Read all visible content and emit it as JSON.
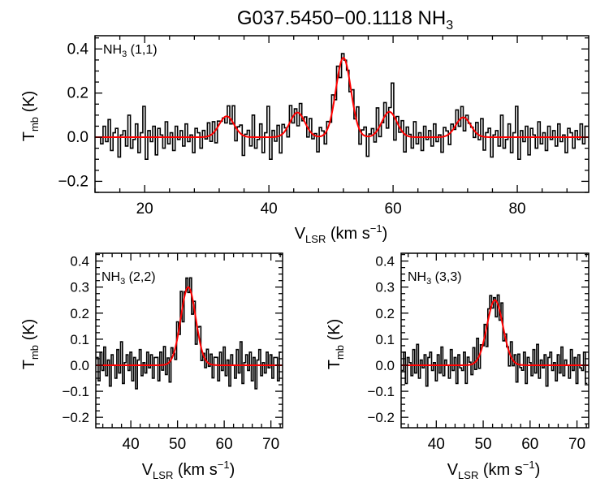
{
  "figure": {
    "title_main": "G037.5450−00.1118 NH",
    "title_sub": "3"
  },
  "chart_data": [
    {
      "type": "line",
      "panel": "top",
      "label": {
        "main": "NH",
        "sub": "3",
        "rest": " (1,1)"
      },
      "xlabel": {
        "main": "V",
        "sub": "LSR",
        "rest": " (km s",
        "sup": "−1",
        "close": ")"
      },
      "ylabel": {
        "main": "T",
        "sub": "mb",
        "rest": " (K)"
      },
      "xlim": [
        12,
        91.5
      ],
      "ylim": [
        -0.25,
        0.46
      ],
      "xticks": [
        20,
        40,
        60,
        80
      ],
      "yticks": [
        -0.2,
        0.0,
        0.2,
        0.4
      ],
      "ytick_labels": [
        "−0.2",
        "0.0",
        "0.2",
        "0.4"
      ],
      "fit_components": [
        {
          "center": 33.2,
          "amplitude": 0.095,
          "sigma": 1.2
        },
        {
          "center": 44.6,
          "amplitude": 0.112,
          "sigma": 1.2
        },
        {
          "center": 52.0,
          "amplitude": 0.36,
          "sigma": 1.2
        },
        {
          "center": 59.4,
          "amplitude": 0.115,
          "sigma": 1.2
        },
        {
          "center": 71.3,
          "amplitude": 0.09,
          "sigma": 1.2
        }
      ],
      "spectrum": {
        "x_start": 12.5,
        "dx": 0.4,
        "noise": [
          0.0,
          -0.03,
          0.05,
          -0.02,
          0.08,
          -0.06,
          0.02,
          0.04,
          -0.09,
          0.01,
          0.03,
          -0.04,
          0.1,
          -0.05,
          -0.01,
          0.06,
          -0.07,
          0.02,
          0.14,
          -0.1,
          0.03,
          -0.02,
          0.05,
          -0.08,
          0.04,
          0.01,
          -0.05,
          0.07,
          -0.03,
          0.02,
          -0.06,
          0.05,
          -0.01,
          0.03,
          -0.04,
          0.06,
          -0.02,
          0.01,
          -0.07,
          0.04,
          0.02,
          -0.05,
          0.03,
          -0.01,
          0.06,
          -0.03,
          0.05,
          -0.06,
          0.02,
          0.0
        ]
      },
      "series": [
        {
          "name": "fit",
          "color": "#ff0000"
        },
        {
          "name": "data",
          "color": "#000000"
        }
      ]
    },
    {
      "type": "line",
      "panel": "bottom-left",
      "label": {
        "main": "NH",
        "sub": "3",
        "rest": " (2,2)"
      },
      "xlabel": {
        "main": "V",
        "sub": "LSR",
        "rest": " (km s",
        "sup": "−1",
        "close": ")"
      },
      "ylabel": {
        "main": "T",
        "sub": "mb",
        "rest": " (K)"
      },
      "xlim": [
        32.5,
        72.5
      ],
      "ylim": [
        -0.24,
        0.43
      ],
      "xticks": [
        40,
        50,
        60,
        70
      ],
      "yticks": [
        -0.2,
        -0.1,
        0.0,
        0.1,
        0.2,
        0.3,
        0.4
      ],
      "ytick_labels": [
        "−0.2",
        "−0.1",
        "0.0",
        "0.1",
        "0.2",
        "0.3",
        "0.4"
      ],
      "fit_components": [
        {
          "center": 52.3,
          "amplitude": 0.3,
          "sigma": 1.6
        }
      ],
      "spectrum": {
        "x_start": 32.6,
        "dx": 0.4,
        "noise": [
          0.03,
          -0.06,
          0.05,
          -0.02,
          0.07,
          -0.04,
          0.02,
          -0.08,
          0.04,
          0.0,
          -0.05,
          0.06,
          -0.03,
          0.09,
          -0.07,
          0.01,
          0.04,
          -0.02,
          0.05,
          -0.06,
          0.03,
          -0.09,
          0.02,
          0.06,
          -0.04,
          0.01,
          -0.03,
          0.05,
          -0.01,
          0.04,
          -0.05,
          0.03
        ]
      },
      "series": [
        {
          "name": "fit",
          "color": "#ff0000"
        },
        {
          "name": "data",
          "color": "#000000"
        }
      ]
    },
    {
      "type": "line",
      "panel": "bottom-right",
      "label": {
        "main": "NH",
        "sub": "3",
        "rest": " (3,3)"
      },
      "xlabel": {
        "main": "V",
        "sub": "LSR",
        "rest": " (km s",
        "sup": "−1",
        "close": ")"
      },
      "ylabel": {
        "main": "T",
        "sub": "mb",
        "rest": " (K)"
      },
      "xlim": [
        32.5,
        72.5
      ],
      "ylim": [
        -0.24,
        0.43
      ],
      "xticks": [
        40,
        50,
        60,
        70
      ],
      "yticks": [
        -0.2,
        -0.1,
        0.0,
        0.1,
        0.2,
        0.3,
        0.4
      ],
      "ytick_labels": [
        "−0.2",
        "−0.1",
        "0.0",
        "0.1",
        "0.2",
        "0.3",
        "0.4"
      ],
      "fit_components": [
        {
          "center": 52.5,
          "amplitude": 0.25,
          "sigma": 1.7
        }
      ],
      "spectrum": {
        "x_start": 32.6,
        "dx": 0.4,
        "noise": [
          -0.02,
          0.05,
          -0.07,
          0.03,
          0.01,
          -0.04,
          0.06,
          -0.03,
          0.08,
          -0.05,
          0.02,
          -0.01,
          0.04,
          -0.08,
          0.03,
          0.05,
          -0.02,
          0.01,
          -0.06,
          0.04,
          -0.03,
          0.07,
          -0.04,
          0.02,
          0.0,
          -0.05,
          0.06,
          -0.02,
          0.03,
          -0.07,
          0.04,
          -0.01
        ]
      },
      "series": [
        {
          "name": "fit",
          "color": "#ff0000"
        },
        {
          "name": "data",
          "color": "#000000"
        }
      ]
    }
  ]
}
